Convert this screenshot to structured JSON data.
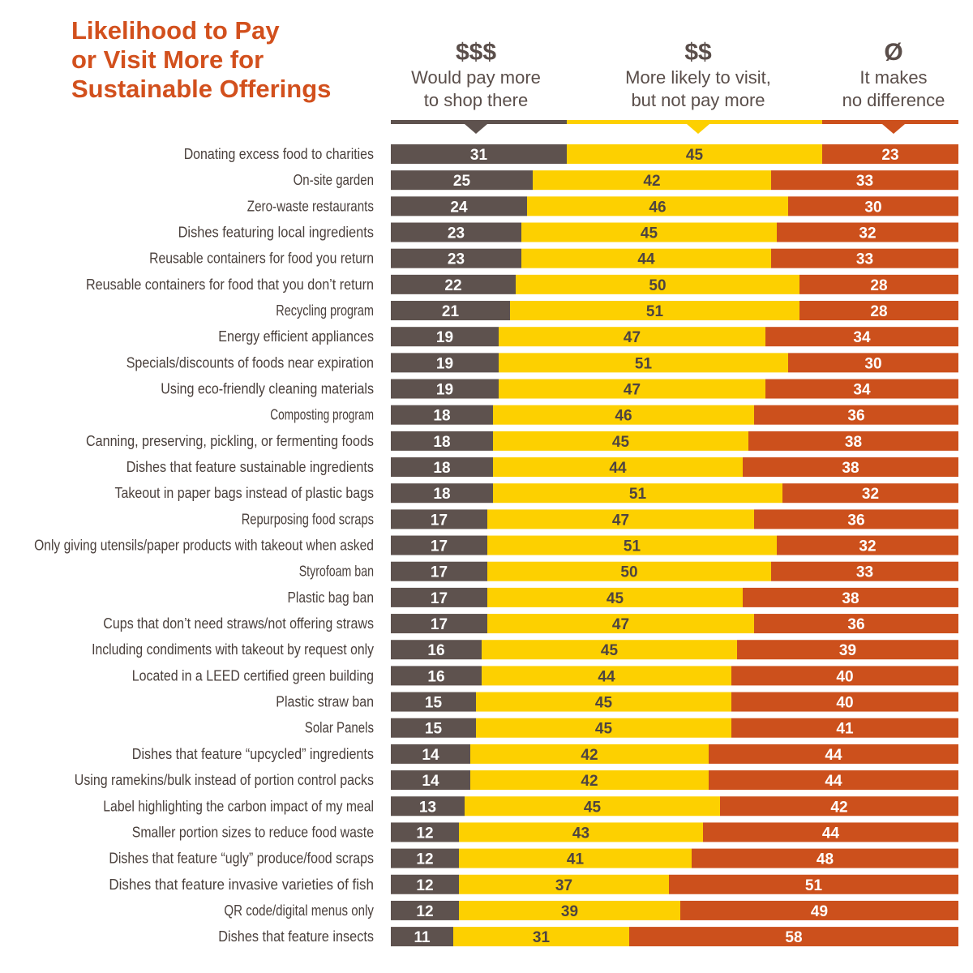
{
  "colors": {
    "pay_more": "#5e524e",
    "visit": "#fdd000",
    "no_difference": "#cc501c",
    "title": "#d2501d"
  },
  "chart_data": {
    "type": "bar",
    "orientation": "horizontal",
    "stacked": true,
    "title_lines": [
      "Likelihood to Pay",
      "or Visit More for",
      "Sustainable Offerings"
    ],
    "legend": [
      {
        "symbol": "$$$",
        "lines": [
          "Would pay more",
          "to shop there"
        ]
      },
      {
        "symbol": "$$",
        "lines": [
          "More likely to visit,",
          "but not pay more"
        ]
      },
      {
        "symbol": "Ø",
        "lines": [
          "It makes",
          "no difference"
        ]
      }
    ],
    "legend_placement": "top",
    "xlim": [
      0,
      100
    ],
    "categories": [
      "Donating excess food to charities",
      "On-site garden",
      "Zero-waste restaurants",
      "Dishes featuring local ingredients",
      "Reusable containers for food you return",
      "Reusable containers for food that you don’t return",
      "Recycling program",
      "Energy efficient appliances",
      "Specials/discounts of foods near expiration",
      "Using eco-friendly cleaning materials",
      "Composting program",
      "Canning, preserving, pickling, or fermenting foods",
      "Dishes that feature sustainable ingredients",
      "Takeout in paper bags instead of plastic bags",
      "Repurposing food scraps",
      "Only giving utensils/paper products with takeout when asked",
      "Styrofoam ban",
      "Plastic bag ban",
      "Cups that don’t need straws/not offering straws",
      "Including condiments with takeout by request only",
      "Located in a LEED certified green building",
      "Plastic straw ban",
      "Solar Panels",
      "Dishes that feature “upcycled” ingredients",
      "Using ramekins/bulk instead of portion control packs",
      "Label highlighting the carbon impact of my meal",
      "Smaller portion sizes to reduce food waste",
      "Dishes that feature “ugly” produce/food scraps",
      "Dishes that feature invasive varieties of fish",
      "QR code/digital menus only",
      "Dishes that feature insects"
    ],
    "series": [
      {
        "name": "Would pay more to shop there",
        "values": [
          31,
          25,
          24,
          23,
          23,
          22,
          21,
          19,
          19,
          19,
          18,
          18,
          18,
          18,
          17,
          17,
          17,
          17,
          17,
          16,
          16,
          15,
          15,
          14,
          14,
          13,
          12,
          12,
          12,
          12,
          11
        ]
      },
      {
        "name": "More likely to visit, but not pay more",
        "values": [
          45,
          42,
          46,
          45,
          44,
          50,
          51,
          47,
          51,
          47,
          46,
          45,
          44,
          51,
          47,
          51,
          50,
          45,
          47,
          45,
          44,
          45,
          45,
          42,
          42,
          45,
          43,
          41,
          37,
          39,
          31
        ]
      },
      {
        "name": "It makes no difference",
        "values": [
          23,
          33,
          30,
          32,
          33,
          28,
          28,
          34,
          30,
          34,
          36,
          38,
          38,
          32,
          36,
          32,
          33,
          38,
          36,
          39,
          40,
          40,
          41,
          44,
          44,
          42,
          44,
          48,
          51,
          49,
          58
        ]
      }
    ]
  }
}
